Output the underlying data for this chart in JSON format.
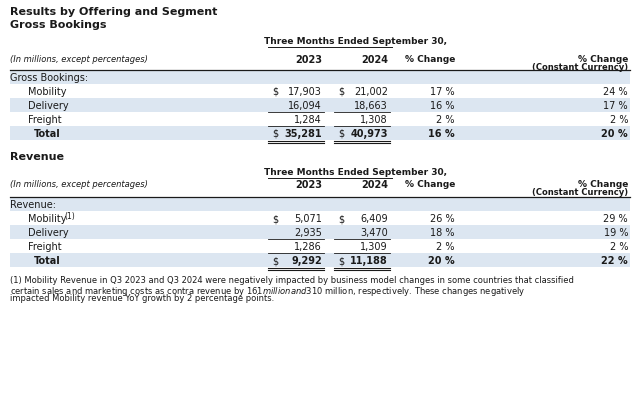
{
  "title1": "Results by Offering and Segment",
  "title2": "Gross Bookings",
  "title3": "Revenue",
  "header_period": "Three Months Ended September 30,",
  "subheader": "(In millions, except percentages)",
  "gross_bookings_label": "Gross Bookings:",
  "revenue_label": "Revenue:",
  "gb_rows": [
    {
      "label": "Mobility",
      "val2023": "17,903",
      "val2024": "21,002",
      "pct": "17 %",
      "pct_cc": "24 %",
      "dollar2023": true,
      "dollar2024": true
    },
    {
      "label": "Delivery",
      "val2023": "16,094",
      "val2024": "18,663",
      "pct": "16 %",
      "pct_cc": "17 %",
      "dollar2023": false,
      "dollar2024": false
    },
    {
      "label": "Freight",
      "val2023": "1,284",
      "val2024": "1,308",
      "pct": "2 %",
      "pct_cc": "2 %",
      "dollar2023": false,
      "dollar2024": false
    }
  ],
  "gb_total": {
    "label": "Total",
    "val2023": "35,281",
    "val2024": "40,973",
    "pct": "16 %",
    "pct_cc": "20 %"
  },
  "rev_rows": [
    {
      "label": "Mobility",
      "superscript": "(1)",
      "val2023": "5,071",
      "val2024": "6,409",
      "pct": "26 %",
      "pct_cc": "29 %",
      "dollar2023": true,
      "dollar2024": true
    },
    {
      "label": "Delivery",
      "superscript": "",
      "val2023": "2,935",
      "val2024": "3,470",
      "pct": "18 %",
      "pct_cc": "19 %",
      "dollar2023": false,
      "dollar2024": false
    },
    {
      "label": "Freight",
      "superscript": "",
      "val2023": "1,286",
      "val2024": "1,309",
      "pct": "2 %",
      "pct_cc": "2 %",
      "dollar2023": false,
      "dollar2024": false
    }
  ],
  "rev_total": {
    "label": "Total",
    "val2023": "9,292",
    "val2024": "11,188",
    "pct": "20 %",
    "pct_cc": "22 %"
  },
  "footnote_line1": "(1) Mobility Revenue in Q3 2023 and Q3 2024 were negatively impacted by business model changes in some countries that classified",
  "footnote_line2": "certain sales and marketing costs as contra revenue by $161 million and $310 million, respectively. These changes negatively",
  "footnote_line3": "impacted Mobility revenue YoY growth by 2 percentage points.",
  "bg_color": "#ffffff",
  "row_blue": "#dce6f1",
  "row_white": "#ffffff"
}
